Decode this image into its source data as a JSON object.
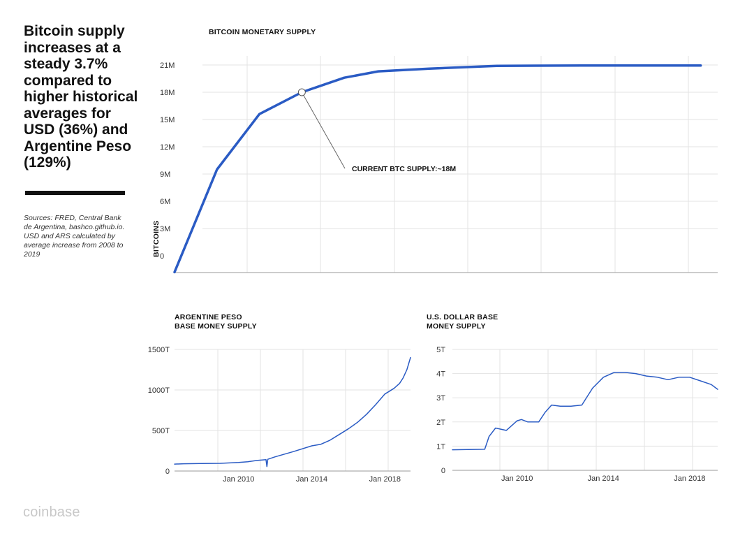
{
  "headline": "Bitcoin supply increases at a steady 3.7% compared to higher historical averages for USD (36%) and Argentine Peso (129%)",
  "sources": "Sources: FRED, Central Bank de Argentina, bashco.github.io. USD and ARS calculated by average increase from 2008 to 2019",
  "brand": "coinbase",
  "colors": {
    "line": "#2a5bc4",
    "grid": "#e3e3e3",
    "axis": "#555555",
    "text": "#111111"
  },
  "chart_data": [
    {
      "id": "btc",
      "type": "line",
      "title_lines": [
        "BITCOIN MONETARY SUPPLY"
      ],
      "xlabel": "",
      "ylabel": "BITCOINS",
      "yticks": [
        0,
        3,
        6,
        9,
        12,
        15,
        18,
        21
      ],
      "ytick_labels": [
        "0",
        "3M",
        "6M",
        "9M",
        "12M",
        "15M",
        "18M",
        "21M"
      ],
      "ylim": [
        -2,
        21.5
      ],
      "xlim": [
        2009,
        2041
      ],
      "grid": true,
      "series": [
        {
          "x": [
            2009,
            2011.5,
            2014,
            2016.5,
            2019,
            2021,
            2024,
            2028,
            2033,
            2040
          ],
          "y": [
            -1.8,
            9.5,
            15.6,
            18.0,
            19.6,
            20.3,
            20.6,
            20.9,
            20.95,
            20.95
          ]
        }
      ],
      "annotation": {
        "text": "CURRENT BTC SUPPLY:~18M",
        "x": 2016.5,
        "y": 18.0
      }
    },
    {
      "id": "ars",
      "type": "line",
      "title_lines": [
        "ARGENTINE PESO",
        "BASE MONEY SUPPLY"
      ],
      "xlabel": "",
      "ylabel": "",
      "yticks": [
        0,
        500,
        1000,
        1500
      ],
      "ytick_labels": [
        "0",
        "500T",
        "1000T",
        "1500T"
      ],
      "ylim": [
        0,
        1500
      ],
      "xlim": [
        2006.5,
        2019.4
      ],
      "xticks": [
        2010,
        2014,
        2018
      ],
      "xtick_labels": [
        "Jan 2010",
        "Jan 2014",
        "Jan 2018"
      ],
      "grid": true,
      "series": [
        {
          "x": [
            2006.5,
            2007,
            2008,
            2009,
            2010,
            2010.5,
            2011,
            2011.5,
            2011.55,
            2011.6,
            2012,
            2013,
            2014,
            2014.5,
            2015,
            2015.5,
            2016,
            2016.5,
            2017,
            2017.5,
            2018,
            2018.5,
            2018.8,
            2019,
            2019.2,
            2019.4
          ],
          "y": [
            85,
            90,
            92,
            95,
            105,
            115,
            130,
            140,
            55,
            145,
            175,
            240,
            310,
            330,
            380,
            450,
            520,
            600,
            700,
            820,
            950,
            1020,
            1080,
            1150,
            1250,
            1400
          ]
        }
      ]
    },
    {
      "id": "usd",
      "type": "line",
      "title_lines": [
        "U.S. DOLLAR BASE",
        "MONEY SUPPLY"
      ],
      "xlabel": "",
      "ylabel": "",
      "yticks": [
        0,
        1,
        2,
        3,
        4,
        5
      ],
      "ytick_labels": [
        "0",
        "1T",
        "2T",
        "3T",
        "4T",
        "5T"
      ],
      "ylim": [
        0,
        5
      ],
      "xlim": [
        2007,
        2019.3
      ],
      "xticks": [
        2010,
        2014,
        2018
      ],
      "xtick_labels": [
        "Jan 2010",
        "Jan 2014",
        "Jan 2018"
      ],
      "grid": true,
      "series": [
        {
          "x": [
            2007,
            2008.5,
            2008.7,
            2009,
            2009.5,
            2010,
            2010.2,
            2010.5,
            2011,
            2011.3,
            2011.6,
            2012,
            2012.5,
            2013,
            2013.5,
            2014,
            2014.5,
            2015,
            2015.5,
            2016,
            2016.5,
            2017,
            2017.5,
            2018,
            2018.5,
            2019,
            2019.3
          ],
          "y": [
            0.85,
            0.87,
            1.4,
            1.75,
            1.65,
            2.05,
            2.1,
            2.0,
            2.0,
            2.4,
            2.7,
            2.65,
            2.65,
            2.7,
            3.4,
            3.85,
            4.05,
            4.05,
            4.0,
            3.9,
            3.85,
            3.75,
            3.85,
            3.85,
            3.7,
            3.55,
            3.35
          ]
        }
      ]
    }
  ]
}
